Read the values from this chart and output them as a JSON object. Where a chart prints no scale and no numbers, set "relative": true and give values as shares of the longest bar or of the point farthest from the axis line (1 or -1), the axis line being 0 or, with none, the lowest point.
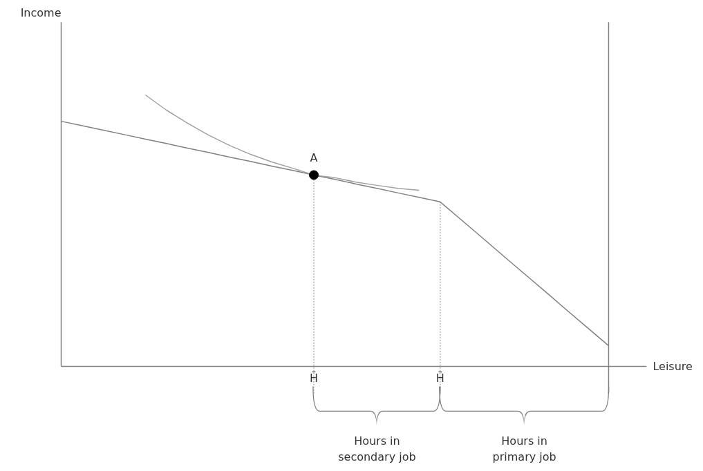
{
  "chart_data": {
    "type": "line",
    "relative": true,
    "xlabel": "Leisure",
    "grid": "x",
    "categories": [
      null,
      null,
      null,
      null,
      null,
      null,
      null,
      null,
      null,
      null,
      null,
      null,
      "H̄",
      null,
      null,
      null,
      null,
      null,
      "H̄",
      null,
      null,
      null,
      null,
      null,
      null,
      null,
      null
    ],
    "series": [
      {
        "color": "#808080",
        "values": [
          0.903,
          0.887,
          0.87,
          0.854,
          0.837,
          0.821,
          0.804,
          0.788,
          0.771,
          0.755,
          0.738,
          0.722,
          0.705,
          0.689,
          0.672,
          0.656,
          0.639,
          0.623,
          0.606,
          0.54,
          0.474,
          0.407,
          0.341,
          0.275,
          0.208,
          0.142,
          0.076
        ]
      },
      {
        "color": "#a0a0a0",
        "values": [
          null,
          null,
          null,
          null,
          1.0,
          0.944,
          0.896,
          0.852,
          0.814,
          0.781,
          0.753,
          0.73,
          0.705,
          0.695,
          0.679,
          0.667,
          0.656,
          0.649,
          null,
          null,
          null,
          null,
          null,
          null,
          null,
          null,
          null
        ]
      },
      {
        "type": "scatter",
        "name": "A",
        "marker": "circle",
        "color": "#000000",
        "values": [
          null,
          null,
          null,
          null,
          null,
          null,
          null,
          null,
          null,
          null,
          null,
          null,
          0.705,
          null,
          null,
          null,
          null,
          null,
          null,
          null,
          null,
          null,
          null,
          null,
          null,
          null,
          null
        ]
      }
    ],
    "annotations": [
      "Income",
      "Hours in\nsecondary job",
      "Hours in\nprimary job"
    ]
  }
}
